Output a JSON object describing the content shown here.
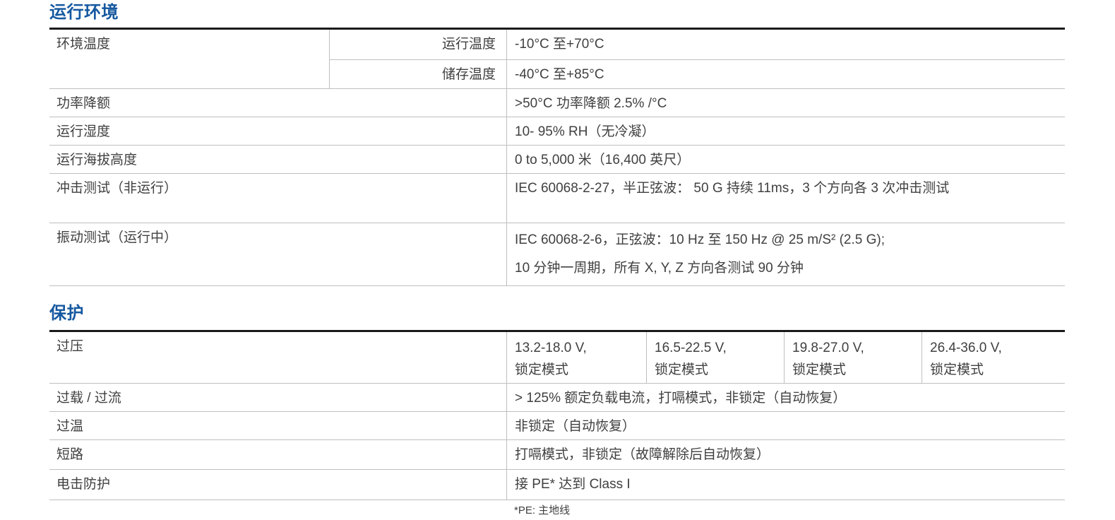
{
  "colors": {
    "title_blue": "#15589F",
    "text": "#404040",
    "border_light": "#bfbfbf",
    "border_dark": "#1a1a1a",
    "background": "#ffffff"
  },
  "env": {
    "title": "运行环境",
    "ambient": {
      "label": "环境温度",
      "sub_rows": [
        {
          "label": "运行温度",
          "value": "-10°C 至+70°C"
        },
        {
          "label": "储存温度",
          "value": "-40°C 至+85°C"
        }
      ]
    },
    "rows": [
      {
        "label": "功率降额",
        "value": ">50°C 功率降额 2.5% /°C"
      },
      {
        "label": "运行湿度",
        "value": "10- 95% RH（无冷凝）"
      },
      {
        "label": "运行海拔高度",
        "value": "0 to 5,000 米（16,400 英尺）"
      },
      {
        "label": "冲击测试（非运行）",
        "value": "IEC 60068-2-27，半正弦波： 50 G 持续 11ms，3 个方向各 3 次冲击测试"
      },
      {
        "label": "振动测试（运行中）",
        "value": "IEC 60068-2-6，正弦波：10 Hz 至 150 Hz @ 25 m/S² (2.5 G);\n10 分钟一周期，所有 X, Y, Z 方向各测试 90 分钟"
      }
    ]
  },
  "protection": {
    "title": "保护",
    "overvoltage": {
      "label": "过压",
      "cells": [
        "13.2-18.0 V,\n锁定模式",
        "16.5-22.5 V,\n锁定模式",
        "19.8-27.0 V,\n锁定模式",
        "26.4-36.0 V,\n锁定模式"
      ]
    },
    "rows": [
      {
        "label": "过载 / 过流",
        "value": "> 125% 额定负载电流，打嗝模式，非锁定（自动恢复）"
      },
      {
        "label": "过温",
        "value": "非锁定（自动恢复）"
      },
      {
        "label": "短路",
        "value": "打嗝模式，非锁定（故障解除后自动恢复）"
      },
      {
        "label": "电击防护",
        "value": "接 PE* 达到 Class I"
      }
    ],
    "footnote": "*PE: 主地线"
  }
}
